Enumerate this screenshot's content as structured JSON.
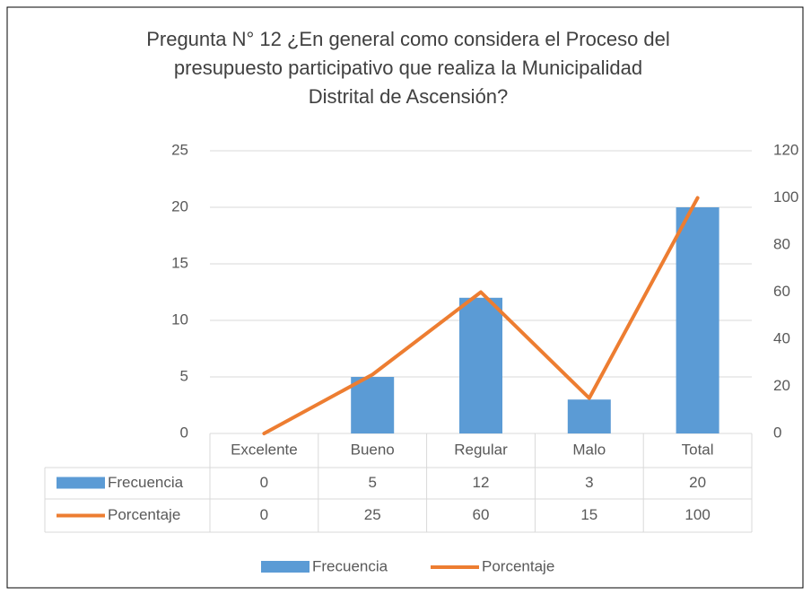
{
  "chart_data": {
    "type": "bar-line",
    "title": [
      "Pregunta N° 12 ¿En general como considera el Proceso del",
      "presupuesto participativo que realiza la Municipalidad",
      "Distrital de Ascensión?"
    ],
    "categories": [
      "Excelente",
      "Bueno",
      "Regular",
      "Malo",
      "Total"
    ],
    "series": [
      {
        "name": "Frecuencia",
        "type": "bar",
        "color": "#5b9bd5",
        "axis": "y",
        "values": [
          0,
          5,
          12,
          3,
          20
        ]
      },
      {
        "name": "Porcentaje",
        "type": "line",
        "color": "#ed7d31",
        "axis": "y2",
        "values": [
          0,
          25,
          60,
          15,
          100
        ]
      }
    ],
    "ylim": [
      0,
      25
    ],
    "yticks": [
      0,
      5,
      10,
      15,
      20,
      25
    ],
    "y2lim": [
      0,
      120
    ],
    "y2ticks": [
      0,
      20,
      40,
      60,
      80,
      100,
      120
    ],
    "grid": true,
    "legend": "bottom",
    "data_table": true
  }
}
